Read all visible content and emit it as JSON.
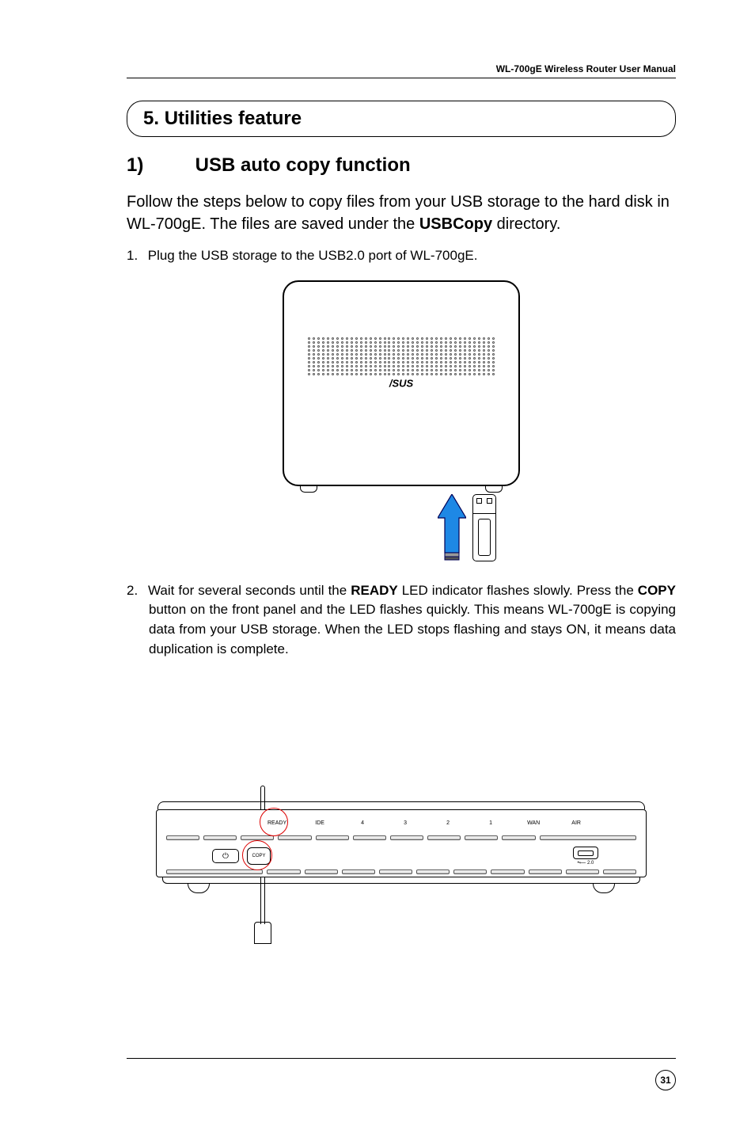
{
  "header": {
    "manual_title": "WL-700gE Wireless Router User Manual"
  },
  "section": {
    "number": "5.",
    "title": "Utilities feature"
  },
  "subsection": {
    "number": "1)",
    "title": "USB auto copy function"
  },
  "intro": {
    "text_part1": "Follow the steps below to copy files from your USB storage to the hard disk in WL-700gE. The files are saved under the ",
    "bold_word": "USBCopy",
    "text_part2": " directory."
  },
  "steps": {
    "step1_num": "1.",
    "step1_text": "Plug the USB storage to the USB2.0 port of WL-700gE.",
    "step2_num": "2.",
    "step2_text_p1": "Wait for several seconds until the ",
    "step2_bold1": "READY",
    "step2_text_p2": " LED indicator flashes slowly. Press the ",
    "step2_bold2": "COPY",
    "step2_text_p3": " button on the front panel and the LED flashes quickly. This means WL-700gE is copying data from your USB storage. When the LED stops flashing and stays ON, it means data duplication is complete."
  },
  "figure1": {
    "brand_label": "/SUS",
    "arrow_color": "#1e88e5",
    "grille_rows": 10,
    "grille_cols": 40
  },
  "figure2": {
    "leds": {
      "ready": "READY",
      "ide": "IDE",
      "l4": "4",
      "l3": "3",
      "l2": "2",
      "l1": "1",
      "wan": "WAN",
      "air": "AIR"
    },
    "copy_button_label": "COPY",
    "power_symbol": "⏻",
    "usb_label": "2.0",
    "highlight_color": "#d00000"
  },
  "page_number": "31"
}
